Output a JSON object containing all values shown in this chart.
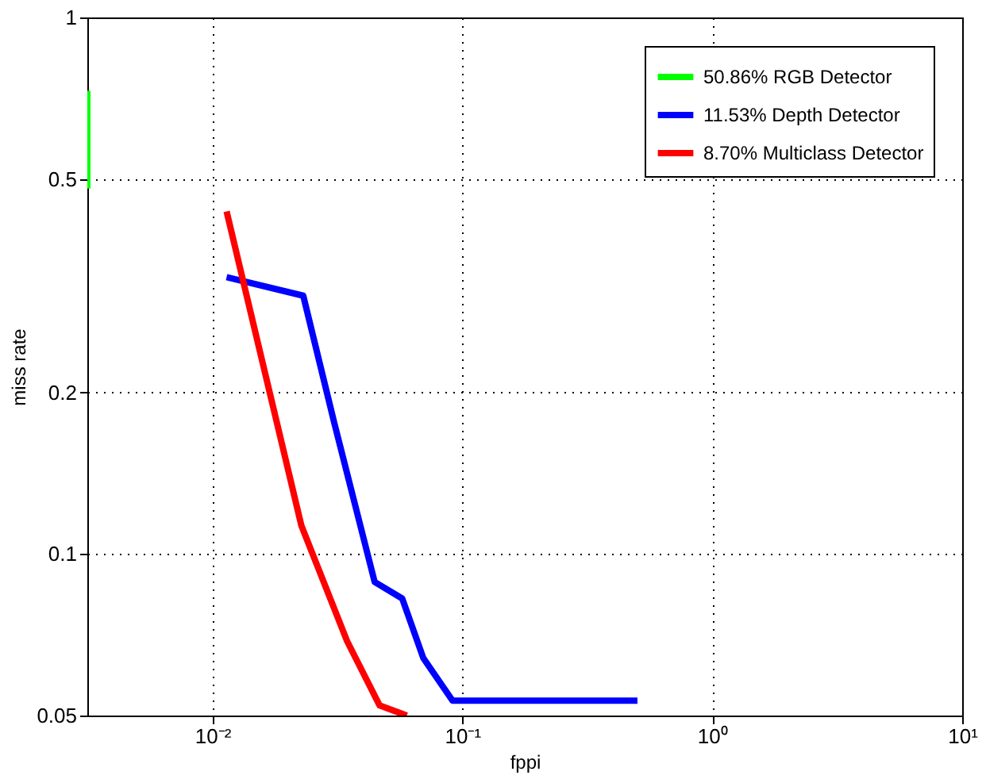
{
  "chart_data": {
    "type": "line",
    "xlabel": "fppi",
    "ylabel": "miss rate",
    "log": "xy",
    "xlim": [
      0.00316,
      10
    ],
    "ylim": [
      0.05,
      1
    ],
    "xticks": [
      {
        "value": 0.01,
        "label": "10⁻²"
      },
      {
        "value": 0.1,
        "label": "10⁻¹"
      },
      {
        "value": 1,
        "label": "10⁰"
      },
      {
        "value": 10,
        "label": "10¹"
      }
    ],
    "yticks": [
      0.05,
      0.1,
      0.2,
      0.5,
      1
    ],
    "grid": true,
    "legend": "top right",
    "line_style": "solid",
    "marker": "none",
    "series": [
      {
        "name": "50.86% RGB Detector",
        "color": "#00ff00",
        "x": [
          0.00316,
          0.00316
        ],
        "values": [
          0.73,
          0.48
        ]
      },
      {
        "name": "11.53% Depth Detector",
        "color": "#0000ff",
        "x": [
          0.0114,
          0.0231,
          0.0307,
          0.0446,
          0.0575,
          0.0698,
          0.0914,
          0.502
        ],
        "values": [
          0.328,
          0.303,
          0.176,
          0.0887,
          0.0826,
          0.064,
          0.0533,
          0.0533
        ]
      },
      {
        "name": "8.70% Multiclass Detector",
        "color": "#ff0000",
        "x": [
          0.0114,
          0.0227,
          0.0346,
          0.0467,
          0.06
        ],
        "values": [
          0.435,
          0.113,
          0.0688,
          0.0522,
          0.05
        ]
      }
    ]
  }
}
